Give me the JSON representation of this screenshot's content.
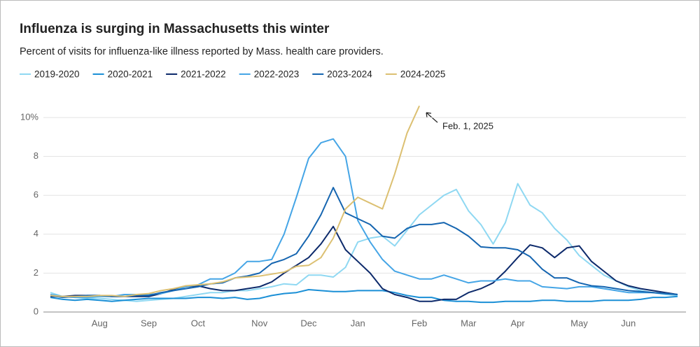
{
  "chart_data": {
    "type": "line",
    "title": "Influenza is surging in Massachusetts this winter",
    "subtitle": "Percent of visits for influenza-like illness reported by Mass. health care providers.",
    "annotation": "Feb. 1, 2025",
    "categories": [
      null,
      null,
      null,
      null,
      "Aug",
      null,
      null,
      null,
      "Sep",
      null,
      null,
      null,
      "Oct",
      null,
      null,
      null,
      null,
      "Nov",
      null,
      null,
      null,
      "Dec",
      null,
      null,
      null,
      "Jan",
      null,
      null,
      null,
      null,
      "Feb",
      null,
      null,
      null,
      "Mar",
      null,
      null,
      null,
      "Apr",
      null,
      null,
      null,
      null,
      "May",
      null,
      null,
      null,
      "Jun",
      null,
      null,
      null,
      null
    ],
    "ylim": [
      0,
      10.6
    ],
    "yticks": [
      0,
      2,
      4,
      6,
      8,
      {
        "value": 10,
        "label": "10%"
      }
    ],
    "grid": true,
    "series": [
      {
        "name": "2019-2020",
        "color": "#8fd8f2",
        "values": [
          1.0,
          0.8,
          0.75,
          0.7,
          0.7,
          0.65,
          0.6,
          0.55,
          0.6,
          0.65,
          0.7,
          0.8,
          0.9,
          1.0,
          1.0,
          1.1,
          1.1,
          1.2,
          1.3,
          1.45,
          1.4,
          1.9,
          1.9,
          1.8,
          2.3,
          3.6,
          3.8,
          3.9,
          3.4,
          4.2,
          5.0,
          5.5,
          6.0,
          6.3,
          5.2,
          4.5,
          3.5,
          4.6,
          6.6,
          5.5,
          5.1,
          4.3,
          3.7,
          2.9,
          2.4,
          1.9,
          1.6,
          1.3,
          1.1,
          1.0,
          0.9,
          0.85
        ]
      },
      {
        "name": "2020-2021",
        "color": "#1a8fd6",
        "values": [
          0.75,
          0.65,
          0.6,
          0.65,
          0.6,
          0.55,
          0.6,
          0.65,
          0.7,
          0.7,
          0.7,
          0.7,
          0.75,
          0.75,
          0.7,
          0.75,
          0.65,
          0.7,
          0.85,
          0.95,
          1.0,
          1.15,
          1.1,
          1.05,
          1.05,
          1.1,
          1.1,
          1.1,
          1.0,
          0.85,
          0.75,
          0.75,
          0.6,
          0.55,
          0.55,
          0.5,
          0.5,
          0.55,
          0.55,
          0.55,
          0.6,
          0.6,
          0.55,
          0.55,
          0.55,
          0.6,
          0.6,
          0.6,
          0.65,
          0.75,
          0.75,
          0.8
        ]
      },
      {
        "name": "2021-2022",
        "color": "#0d2a6b",
        "values": [
          0.8,
          0.8,
          0.85,
          0.85,
          0.85,
          0.8,
          0.8,
          0.8,
          0.8,
          0.95,
          1.15,
          1.3,
          1.35,
          1.2,
          1.1,
          1.1,
          1.2,
          1.3,
          1.55,
          2.0,
          2.4,
          2.8,
          3.5,
          4.4,
          3.2,
          2.6,
          2.0,
          1.2,
          0.9,
          0.75,
          0.55,
          0.55,
          0.65,
          0.65,
          1.0,
          1.2,
          1.5,
          2.1,
          2.8,
          3.45,
          3.3,
          2.8,
          3.3,
          3.4,
          2.6,
          2.1,
          1.6,
          1.35,
          1.2,
          1.1,
          1.0,
          0.9
        ]
      },
      {
        "name": "2022-2023",
        "color": "#45a5e6",
        "values": [
          0.9,
          0.8,
          0.75,
          0.75,
          0.8,
          0.8,
          0.9,
          0.9,
          0.9,
          0.95,
          1.1,
          1.3,
          1.4,
          1.7,
          1.7,
          2.0,
          2.6,
          2.6,
          2.7,
          4.0,
          5.9,
          7.9,
          8.7,
          8.9,
          8.0,
          4.7,
          3.6,
          2.7,
          2.1,
          1.9,
          1.7,
          1.7,
          1.9,
          1.7,
          1.5,
          1.6,
          1.6,
          1.7,
          1.6,
          1.6,
          1.3,
          1.25,
          1.2,
          1.3,
          1.3,
          1.2,
          1.1,
          1.0,
          1.0,
          1.0,
          0.95,
          0.9
        ]
      },
      {
        "name": "2023-2024",
        "color": "#1565b0",
        "values": [
          0.85,
          0.75,
          0.8,
          0.85,
          0.85,
          0.8,
          0.8,
          0.85,
          0.85,
          1.0,
          1.1,
          1.2,
          1.3,
          1.45,
          1.5,
          1.75,
          1.85,
          2.0,
          2.5,
          2.7,
          3.0,
          3.9,
          5.0,
          6.4,
          5.1,
          4.8,
          4.5,
          3.9,
          3.8,
          4.3,
          4.5,
          4.5,
          4.6,
          4.3,
          3.9,
          3.35,
          3.3,
          3.3,
          3.2,
          2.85,
          2.2,
          1.75,
          1.75,
          1.5,
          1.35,
          1.3,
          1.2,
          1.1,
          1.05,
          1.0,
          0.95,
          0.9
        ]
      },
      {
        "name": "2024-2025",
        "color": "#dcc072",
        "values": [
          0.85,
          0.8,
          0.8,
          0.8,
          0.85,
          0.85,
          0.8,
          0.9,
          0.95,
          1.1,
          1.2,
          1.35,
          1.4,
          1.45,
          1.55,
          1.75,
          1.8,
          1.85,
          1.95,
          2.05,
          2.35,
          2.4,
          2.8,
          3.8,
          5.3,
          5.9,
          5.6,
          5.3,
          7.1,
          9.2,
          10.6,
          null,
          null,
          null,
          null,
          null,
          null,
          null,
          null,
          null,
          null,
          null,
          null,
          null,
          null,
          null,
          null,
          null,
          null,
          null,
          null,
          null
        ]
      }
    ]
  }
}
